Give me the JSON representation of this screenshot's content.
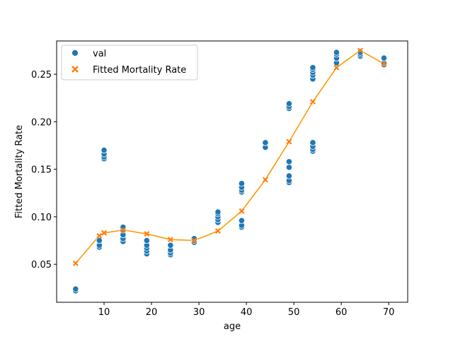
{
  "chart_data": {
    "type": "scatter",
    "xlabel": "age",
    "ylabel": "Fitted Mortality Rate",
    "xlim": [
      0,
      74
    ],
    "ylim": [
      0.01,
      0.285
    ],
    "xticks": [
      10,
      20,
      30,
      40,
      50,
      60,
      70
    ],
    "yticks": [
      0.05,
      0.1,
      0.15,
      0.2,
      0.25
    ],
    "ytick_labels": [
      "0.05",
      "0.10",
      "0.15",
      "0.20",
      "0.25"
    ],
    "grid": false,
    "legend_position": "top-left",
    "series": [
      {
        "name": "val",
        "kind": "scatter",
        "color": "#1f77b4",
        "marker": "circle",
        "points": [
          [
            4,
            0.022
          ],
          [
            4,
            0.024
          ],
          [
            9,
            0.068
          ],
          [
            9,
            0.07
          ],
          [
            9,
            0.075
          ],
          [
            10,
            0.161
          ],
          [
            10,
            0.163
          ],
          [
            10,
            0.166
          ],
          [
            10,
            0.17
          ],
          [
            14,
            0.074
          ],
          [
            14,
            0.077
          ],
          [
            14,
            0.081
          ],
          [
            14,
            0.086
          ],
          [
            14,
            0.089
          ],
          [
            19,
            0.061
          ],
          [
            19,
            0.064
          ],
          [
            19,
            0.067
          ],
          [
            19,
            0.07
          ],
          [
            19,
            0.075
          ],
          [
            24,
            0.06
          ],
          [
            24,
            0.062
          ],
          [
            24,
            0.065
          ],
          [
            24,
            0.07
          ],
          [
            29,
            0.073
          ],
          [
            29,
            0.075
          ],
          [
            29,
            0.077
          ],
          [
            34,
            0.094
          ],
          [
            34,
            0.097
          ],
          [
            34,
            0.1
          ],
          [
            34,
            0.103
          ],
          [
            34,
            0.105
          ],
          [
            39,
            0.089
          ],
          [
            39,
            0.091
          ],
          [
            39,
            0.096
          ],
          [
            39,
            0.126
          ],
          [
            39,
            0.128
          ],
          [
            39,
            0.131
          ],
          [
            39,
            0.135
          ],
          [
            44,
            0.173
          ],
          [
            44,
            0.178
          ],
          [
            49,
            0.136
          ],
          [
            49,
            0.138
          ],
          [
            49,
            0.143
          ],
          [
            49,
            0.152
          ],
          [
            49,
            0.158
          ],
          [
            49,
            0.214
          ],
          [
            49,
            0.216
          ],
          [
            49,
            0.219
          ],
          [
            54,
            0.169
          ],
          [
            54,
            0.171
          ],
          [
            54,
            0.174
          ],
          [
            54,
            0.178
          ],
          [
            54,
            0.245
          ],
          [
            54,
            0.249
          ],
          [
            54,
            0.252
          ],
          [
            54,
            0.255
          ],
          [
            54,
            0.257
          ],
          [
            59,
            0.262
          ],
          [
            59,
            0.267
          ],
          [
            59,
            0.271
          ],
          [
            59,
            0.273
          ],
          [
            64,
            0.269
          ],
          [
            64,
            0.271
          ],
          [
            64,
            0.273
          ],
          [
            69,
            0.26
          ],
          [
            69,
            0.262
          ],
          [
            69,
            0.267
          ]
        ]
      },
      {
        "name": "Fitted Mortality Rate",
        "kind": "line",
        "color": "#ff9900",
        "marker_color": "#ff7f0e",
        "marker": "x",
        "points": [
          [
            4,
            0.051
          ],
          [
            9,
            0.08
          ],
          [
            10,
            0.083
          ],
          [
            14,
            0.086
          ],
          [
            19,
            0.082
          ],
          [
            24,
            0.076
          ],
          [
            29,
            0.075
          ],
          [
            34,
            0.085
          ],
          [
            39,
            0.106
          ],
          [
            44,
            0.139
          ],
          [
            49,
            0.179
          ],
          [
            54,
            0.221
          ],
          [
            59,
            0.257
          ],
          [
            64,
            0.275
          ],
          [
            69,
            0.261
          ]
        ]
      }
    ]
  }
}
